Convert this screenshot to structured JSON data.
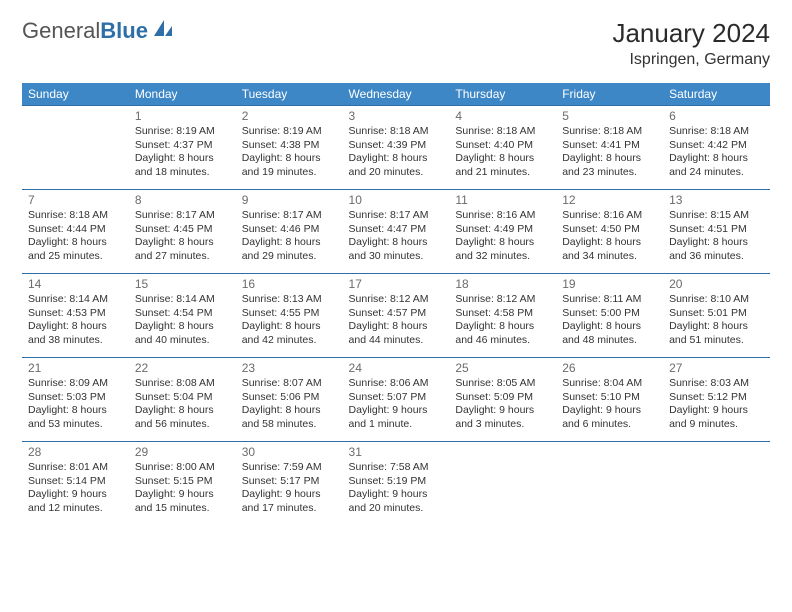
{
  "brand": {
    "general": "General",
    "blue": "Blue"
  },
  "title": "January 2024",
  "location": "Ispringen, Germany",
  "colors": {
    "header_bg": "#3d87c7",
    "header_text": "#ffffff",
    "cell_border": "#2f6fa8",
    "text": "#333333",
    "daynum": "#6b6b6b",
    "brand_blue": "#2f6fa8",
    "brand_gray": "#555555",
    "background": "#ffffff"
  },
  "days_of_week": [
    "Sunday",
    "Monday",
    "Tuesday",
    "Wednesday",
    "Thursday",
    "Friday",
    "Saturday"
  ],
  "weeks": [
    [
      null,
      {
        "n": "1",
        "sr": "Sunrise: 8:19 AM",
        "ss": "Sunset: 4:37 PM",
        "d1": "Daylight: 8 hours",
        "d2": "and 18 minutes."
      },
      {
        "n": "2",
        "sr": "Sunrise: 8:19 AM",
        "ss": "Sunset: 4:38 PM",
        "d1": "Daylight: 8 hours",
        "d2": "and 19 minutes."
      },
      {
        "n": "3",
        "sr": "Sunrise: 8:18 AM",
        "ss": "Sunset: 4:39 PM",
        "d1": "Daylight: 8 hours",
        "d2": "and 20 minutes."
      },
      {
        "n": "4",
        "sr": "Sunrise: 8:18 AM",
        "ss": "Sunset: 4:40 PM",
        "d1": "Daylight: 8 hours",
        "d2": "and 21 minutes."
      },
      {
        "n": "5",
        "sr": "Sunrise: 8:18 AM",
        "ss": "Sunset: 4:41 PM",
        "d1": "Daylight: 8 hours",
        "d2": "and 23 minutes."
      },
      {
        "n": "6",
        "sr": "Sunrise: 8:18 AM",
        "ss": "Sunset: 4:42 PM",
        "d1": "Daylight: 8 hours",
        "d2": "and 24 minutes."
      }
    ],
    [
      {
        "n": "7",
        "sr": "Sunrise: 8:18 AM",
        "ss": "Sunset: 4:44 PM",
        "d1": "Daylight: 8 hours",
        "d2": "and 25 minutes."
      },
      {
        "n": "8",
        "sr": "Sunrise: 8:17 AM",
        "ss": "Sunset: 4:45 PM",
        "d1": "Daylight: 8 hours",
        "d2": "and 27 minutes."
      },
      {
        "n": "9",
        "sr": "Sunrise: 8:17 AM",
        "ss": "Sunset: 4:46 PM",
        "d1": "Daylight: 8 hours",
        "d2": "and 29 minutes."
      },
      {
        "n": "10",
        "sr": "Sunrise: 8:17 AM",
        "ss": "Sunset: 4:47 PM",
        "d1": "Daylight: 8 hours",
        "d2": "and 30 minutes."
      },
      {
        "n": "11",
        "sr": "Sunrise: 8:16 AM",
        "ss": "Sunset: 4:49 PM",
        "d1": "Daylight: 8 hours",
        "d2": "and 32 minutes."
      },
      {
        "n": "12",
        "sr": "Sunrise: 8:16 AM",
        "ss": "Sunset: 4:50 PM",
        "d1": "Daylight: 8 hours",
        "d2": "and 34 minutes."
      },
      {
        "n": "13",
        "sr": "Sunrise: 8:15 AM",
        "ss": "Sunset: 4:51 PM",
        "d1": "Daylight: 8 hours",
        "d2": "and 36 minutes."
      }
    ],
    [
      {
        "n": "14",
        "sr": "Sunrise: 8:14 AM",
        "ss": "Sunset: 4:53 PM",
        "d1": "Daylight: 8 hours",
        "d2": "and 38 minutes."
      },
      {
        "n": "15",
        "sr": "Sunrise: 8:14 AM",
        "ss": "Sunset: 4:54 PM",
        "d1": "Daylight: 8 hours",
        "d2": "and 40 minutes."
      },
      {
        "n": "16",
        "sr": "Sunrise: 8:13 AM",
        "ss": "Sunset: 4:55 PM",
        "d1": "Daylight: 8 hours",
        "d2": "and 42 minutes."
      },
      {
        "n": "17",
        "sr": "Sunrise: 8:12 AM",
        "ss": "Sunset: 4:57 PM",
        "d1": "Daylight: 8 hours",
        "d2": "and 44 minutes."
      },
      {
        "n": "18",
        "sr": "Sunrise: 8:12 AM",
        "ss": "Sunset: 4:58 PM",
        "d1": "Daylight: 8 hours",
        "d2": "and 46 minutes."
      },
      {
        "n": "19",
        "sr": "Sunrise: 8:11 AM",
        "ss": "Sunset: 5:00 PM",
        "d1": "Daylight: 8 hours",
        "d2": "and 48 minutes."
      },
      {
        "n": "20",
        "sr": "Sunrise: 8:10 AM",
        "ss": "Sunset: 5:01 PM",
        "d1": "Daylight: 8 hours",
        "d2": "and 51 minutes."
      }
    ],
    [
      {
        "n": "21",
        "sr": "Sunrise: 8:09 AM",
        "ss": "Sunset: 5:03 PM",
        "d1": "Daylight: 8 hours",
        "d2": "and 53 minutes."
      },
      {
        "n": "22",
        "sr": "Sunrise: 8:08 AM",
        "ss": "Sunset: 5:04 PM",
        "d1": "Daylight: 8 hours",
        "d2": "and 56 minutes."
      },
      {
        "n": "23",
        "sr": "Sunrise: 8:07 AM",
        "ss": "Sunset: 5:06 PM",
        "d1": "Daylight: 8 hours",
        "d2": "and 58 minutes."
      },
      {
        "n": "24",
        "sr": "Sunrise: 8:06 AM",
        "ss": "Sunset: 5:07 PM",
        "d1": "Daylight: 9 hours",
        "d2": "and 1 minute."
      },
      {
        "n": "25",
        "sr": "Sunrise: 8:05 AM",
        "ss": "Sunset: 5:09 PM",
        "d1": "Daylight: 9 hours",
        "d2": "and 3 minutes."
      },
      {
        "n": "26",
        "sr": "Sunrise: 8:04 AM",
        "ss": "Sunset: 5:10 PM",
        "d1": "Daylight: 9 hours",
        "d2": "and 6 minutes."
      },
      {
        "n": "27",
        "sr": "Sunrise: 8:03 AM",
        "ss": "Sunset: 5:12 PM",
        "d1": "Daylight: 9 hours",
        "d2": "and 9 minutes."
      }
    ],
    [
      {
        "n": "28",
        "sr": "Sunrise: 8:01 AM",
        "ss": "Sunset: 5:14 PM",
        "d1": "Daylight: 9 hours",
        "d2": "and 12 minutes."
      },
      {
        "n": "29",
        "sr": "Sunrise: 8:00 AM",
        "ss": "Sunset: 5:15 PM",
        "d1": "Daylight: 9 hours",
        "d2": "and 15 minutes."
      },
      {
        "n": "30",
        "sr": "Sunrise: 7:59 AM",
        "ss": "Sunset: 5:17 PM",
        "d1": "Daylight: 9 hours",
        "d2": "and 17 minutes."
      },
      {
        "n": "31",
        "sr": "Sunrise: 7:58 AM",
        "ss": "Sunset: 5:19 PM",
        "d1": "Daylight: 9 hours",
        "d2": "and 20 minutes."
      },
      null,
      null,
      null
    ]
  ]
}
